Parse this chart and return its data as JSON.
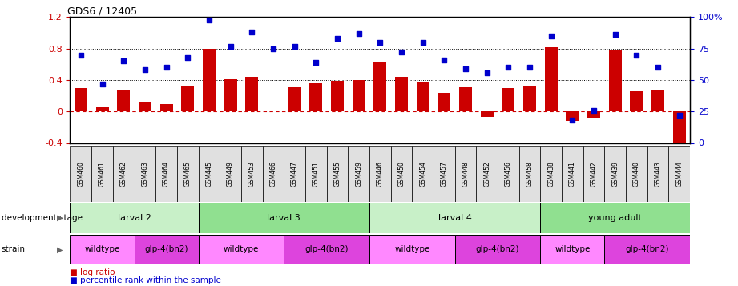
{
  "title": "GDS6 / 12405",
  "samples": [
    "GSM460",
    "GSM461",
    "GSM462",
    "GSM463",
    "GSM464",
    "GSM465",
    "GSM445",
    "GSM449",
    "GSM453",
    "GSM466",
    "GSM447",
    "GSM451",
    "GSM455",
    "GSM459",
    "GSM446",
    "GSM450",
    "GSM454",
    "GSM457",
    "GSM448",
    "GSM452",
    "GSM456",
    "GSM458",
    "GSM438",
    "GSM441",
    "GSM442",
    "GSM439",
    "GSM440",
    "GSM443",
    "GSM444"
  ],
  "log_ratio": [
    0.3,
    0.06,
    0.28,
    0.12,
    0.09,
    0.33,
    0.8,
    0.42,
    0.44,
    0.01,
    0.31,
    0.36,
    0.39,
    0.4,
    0.63,
    0.44,
    0.38,
    0.24,
    0.32,
    -0.07,
    0.3,
    0.33,
    0.82,
    -0.12,
    -0.08,
    0.79,
    0.27,
    0.28,
    -0.6
  ],
  "percentile": [
    70,
    47,
    65,
    58,
    60,
    68,
    98,
    77,
    88,
    75,
    77,
    64,
    83,
    87,
    80,
    72,
    80,
    66,
    59,
    56,
    60,
    60,
    85,
    18,
    26,
    86,
    70,
    60,
    22
  ],
  "bar_color": "#cc0000",
  "dot_color": "#0000cc",
  "ylim_left": [
    -0.4,
    1.2
  ],
  "ylim_right": [
    0,
    100
  ],
  "yticks_left": [
    -0.4,
    0.0,
    0.4,
    0.8,
    1.2
  ],
  "ytick_labels_left": [
    "-0.4",
    "0",
    "0.4",
    "0.8",
    "1.2"
  ],
  "yticks_right": [
    0,
    25,
    50,
    75,
    100
  ],
  "ytick_labels_right": [
    "0",
    "25",
    "50",
    "75",
    "100%"
  ],
  "dev_stages": [
    {
      "label": "larval 2",
      "start": 0,
      "end": 6,
      "color": "#c8f0c8"
    },
    {
      "label": "larval 3",
      "start": 6,
      "end": 14,
      "color": "#90e090"
    },
    {
      "label": "larval 4",
      "start": 14,
      "end": 22,
      "color": "#c8f0c8"
    },
    {
      "label": "young adult",
      "start": 22,
      "end": 29,
      "color": "#90e090"
    }
  ],
  "strains": [
    {
      "label": "wildtype",
      "start": 0,
      "end": 3,
      "color": "#ff88ff"
    },
    {
      "label": "glp-4(bn2)",
      "start": 3,
      "end": 6,
      "color": "#dd44dd"
    },
    {
      "label": "wildtype",
      "start": 6,
      "end": 10,
      "color": "#ff88ff"
    },
    {
      "label": "glp-4(bn2)",
      "start": 10,
      "end": 14,
      "color": "#dd44dd"
    },
    {
      "label": "wildtype",
      "start": 14,
      "end": 18,
      "color": "#ff88ff"
    },
    {
      "label": "glp-4(bn2)",
      "start": 18,
      "end": 22,
      "color": "#dd44dd"
    },
    {
      "label": "wildtype",
      "start": 22,
      "end": 25,
      "color": "#ff88ff"
    },
    {
      "label": "glp-4(bn2)",
      "start": 25,
      "end": 29,
      "color": "#dd44dd"
    }
  ],
  "bar_width": 0.6,
  "fig_width": 9.21,
  "fig_height": 3.57,
  "dpi": 100
}
